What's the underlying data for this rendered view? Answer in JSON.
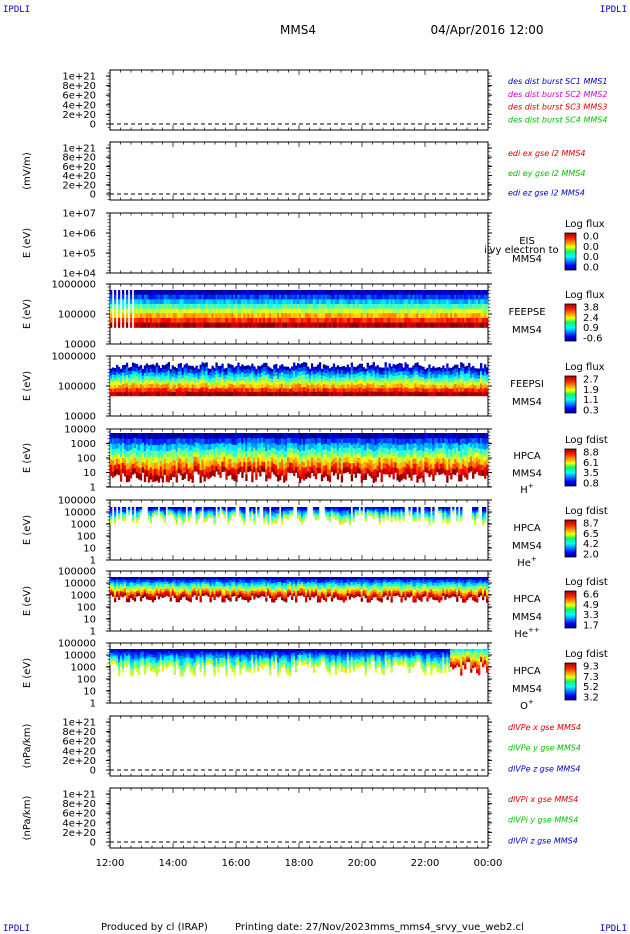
{
  "header": {
    "corner_labels": [
      "IPDLI",
      "IPDLI",
      "IPDLI",
      "IPDLI"
    ],
    "spacecraft": "MMS4",
    "datetime": "04/Apr/2016 12:00"
  },
  "footer": {
    "produced": "Produced by cl (IRAP)",
    "printing": "Printing date: 27/Nov/2023",
    "file": "mms_mms4_srvy_vue_web2.cl"
  },
  "colors": {
    "series": [
      "#0000c0",
      "#d000d0",
      "#e00000",
      "#00c000"
    ],
    "xyz": [
      "#e00000",
      "#00c000",
      "#0000c0"
    ]
  },
  "chart_data": {
    "type": "heatmap",
    "x_tick_labels": [
      "12:00",
      "14:00",
      "16:00",
      "18:00",
      "20:00",
      "22:00",
      "00:00"
    ],
    "panels": [
      {
        "kind": "line",
        "ylabel": "",
        "y_ticks": [
          "1e+21",
          "8e+20",
          "6e+20",
          "4e+20",
          "2e+20",
          "0"
        ],
        "legend": [
          "des dist burst SC1 MMS1",
          "des dist burst SC2 MMS2",
          "des dist burst SC3 MMS3",
          "des dist burst SC4 MMS4"
        ],
        "legend_colors": [
          0,
          1,
          2,
          3
        ]
      },
      {
        "kind": "line",
        "ylabel": "(mV/m)",
        "y_ticks": [
          "1e+21",
          "8e+20",
          "6e+20",
          "4e+20",
          "2e+20",
          "0"
        ],
        "legend": [
          "edi ex gse l2 MMS4",
          "edi ey gse l2 MMS4",
          "edi ez gse l2 MMS4"
        ],
        "legend_colors": [
          2,
          3,
          0
        ]
      },
      {
        "kind": "empty_spec",
        "ylabel": "E (eV)",
        "y_ticks": [
          "1e+07",
          "1e+06",
          "1e+05",
          "1e+04"
        ],
        "instrument": "EIS",
        "overlay": "ilvy electron to",
        "sc": "MMS4",
        "cbar_title": "Log flux",
        "cbar_ticks": [
          "0.0",
          "0.0",
          "0.0",
          "0.0"
        ]
      },
      {
        "kind": "spec",
        "ylabel": "E (eV)",
        "y_ticks": [
          "1000000",
          "100000",
          "10000"
        ],
        "instrument": "FEEPSE",
        "sc": "MMS4",
        "cbar_title": "Log flux",
        "cbar_ticks": [
          "3.8",
          "2.4",
          "0.9",
          "-0.6"
        ]
      },
      {
        "kind": "spec",
        "ylabel": "E (eV)",
        "y_ticks": [
          "1000000",
          "100000",
          "10000"
        ],
        "instrument": "FEEPSI",
        "sc": "MMS4",
        "cbar_title": "Log flux",
        "cbar_ticks": [
          "2.7",
          "1.9",
          "1.1",
          "0.3"
        ]
      },
      {
        "kind": "spec",
        "ylabel": "E (eV)",
        "y_ticks": [
          "10000",
          "1000",
          "100",
          "10",
          "1"
        ],
        "instrument": "HPCA",
        "sc": "MMS4",
        "species_base": "H",
        "species_sup": "+",
        "cbar_title": "Log fdist",
        "cbar_ticks": [
          "8.8",
          "6.1",
          "3.5",
          "0.8"
        ]
      },
      {
        "kind": "spec",
        "ylabel": "E (eV)",
        "y_ticks": [
          "100000",
          "10000",
          "1000",
          "100",
          "10",
          "1"
        ],
        "instrument": "HPCA",
        "sc": "MMS4",
        "species_base": "He",
        "species_sup": "+",
        "cbar_title": "Log fdist",
        "cbar_ticks": [
          "8.7",
          "6.5",
          "4.2",
          "2.0"
        ]
      },
      {
        "kind": "spec",
        "ylabel": "E (eV)",
        "y_ticks": [
          "100000",
          "10000",
          "1000",
          "100",
          "10",
          "1"
        ],
        "instrument": "HPCA",
        "sc": "MMS4",
        "species_base": "He",
        "species_sup": "++",
        "cbar_title": "Log fdist",
        "cbar_ticks": [
          "6.6",
          "4.9",
          "3.3",
          "1.7"
        ]
      },
      {
        "kind": "spec",
        "ylabel": "E (eV)",
        "y_ticks": [
          "100000",
          "10000",
          "1000",
          "100",
          "10",
          "1"
        ],
        "instrument": "HPCA",
        "sc": "MMS4",
        "species_base": "O",
        "species_sup": "+",
        "cbar_title": "Log fdist",
        "cbar_ticks": [
          "9.3",
          "7.3",
          "5.2",
          "3.2"
        ]
      },
      {
        "kind": "line",
        "ylabel": "(nPa/km)",
        "y_ticks": [
          "1e+21",
          "8e+20",
          "6e+20",
          "4e+20",
          "2e+20",
          "0"
        ],
        "legend": [
          "dlVPe x gse MMS4",
          "dlVPe y gse MMS4",
          "dlVPe z gse MMS4"
        ],
        "legend_colors": [
          2,
          3,
          0
        ]
      },
      {
        "kind": "line",
        "ylabel": "(nPa/km)",
        "y_ticks": [
          "1e+21",
          "8e+20",
          "6e+20",
          "4e+20",
          "2e+20",
          "0"
        ],
        "legend": [
          "dlVPi x gse MMS4",
          "dlVPi y gse MMS4",
          "dlVPi z gse MMS4"
        ],
        "legend_colors": [
          2,
          3,
          0
        ]
      }
    ]
  }
}
